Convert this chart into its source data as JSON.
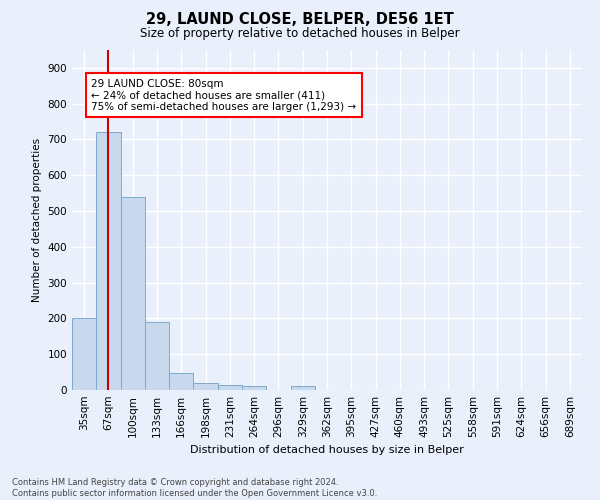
{
  "title1": "29, LAUND CLOSE, BELPER, DE56 1ET",
  "title2": "Size of property relative to detached houses in Belper",
  "xlabel": "Distribution of detached houses by size in Belper",
  "ylabel": "Number of detached properties",
  "categories": [
    "35sqm",
    "67sqm",
    "100sqm",
    "133sqm",
    "166sqm",
    "198sqm",
    "231sqm",
    "264sqm",
    "296sqm",
    "329sqm",
    "362sqm",
    "395sqm",
    "427sqm",
    "460sqm",
    "493sqm",
    "525sqm",
    "558sqm",
    "591sqm",
    "624sqm",
    "656sqm",
    "689sqm"
  ],
  "values": [
    200,
    720,
    540,
    190,
    47,
    20,
    14,
    12,
    0,
    10,
    0,
    0,
    0,
    0,
    0,
    0,
    0,
    0,
    0,
    0,
    0
  ],
  "bar_color": "#c9d9ed",
  "bar_edge_color": "#7faacc",
  "red_line_x": 1,
  "annotation_text": "29 LAUND CLOSE: 80sqm\n← 24% of detached houses are smaller (411)\n75% of semi-detached houses are larger (1,293) →",
  "annotation_box_color": "white",
  "annotation_box_edge": "red",
  "ylim": [
    0,
    950
  ],
  "yticks": [
    0,
    100,
    200,
    300,
    400,
    500,
    600,
    700,
    800,
    900
  ],
  "background_color": "#eaf0fb",
  "grid_color": "white",
  "footer": "Contains HM Land Registry data © Crown copyright and database right 2024.\nContains public sector information licensed under the Open Government Licence v3.0.",
  "red_line_color": "#cc0000"
}
